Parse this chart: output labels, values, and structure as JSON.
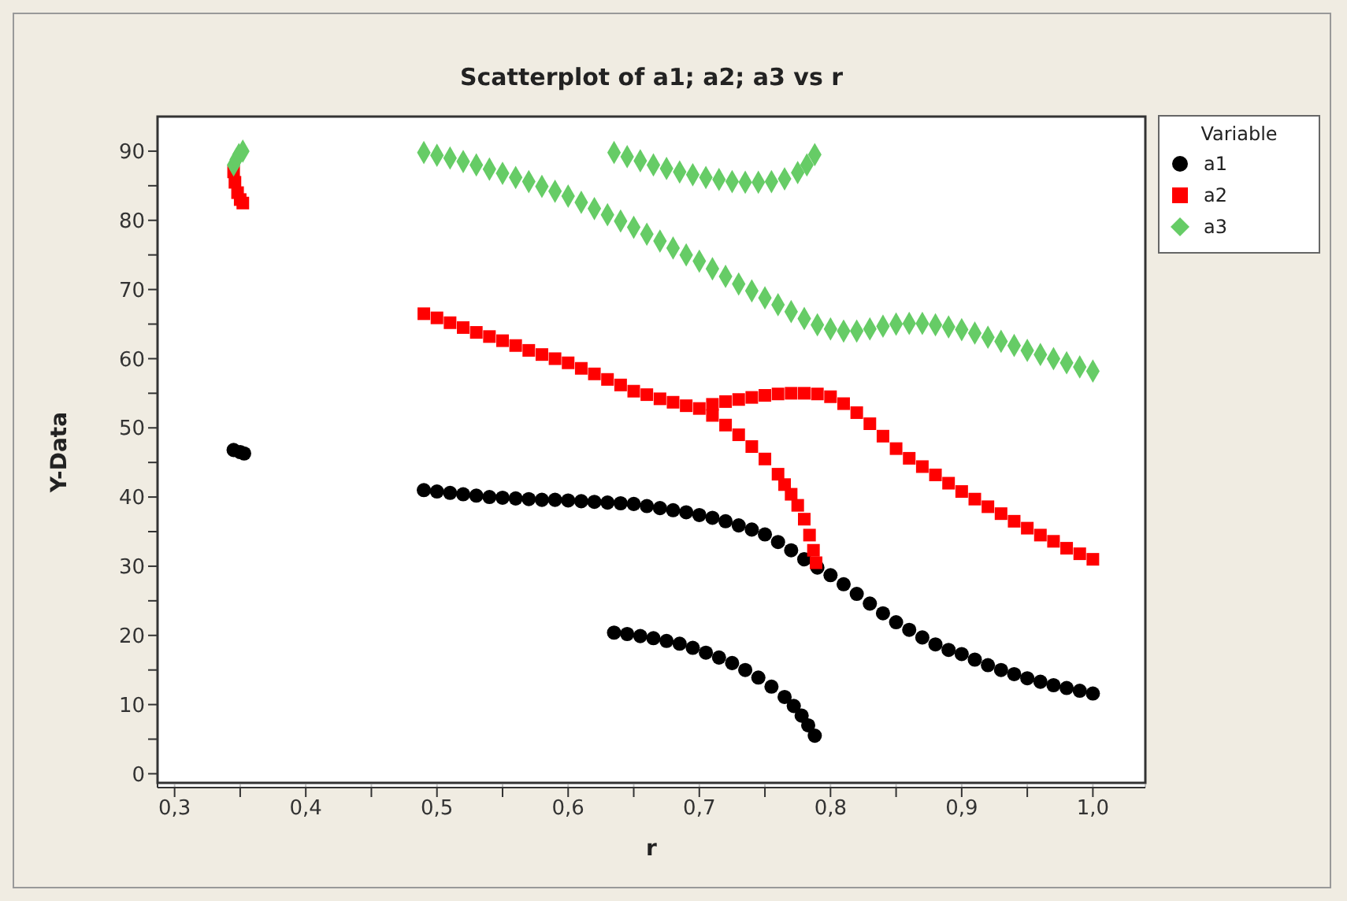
{
  "chart_data": {
    "type": "scatter",
    "title": "Scatterplot of a1; a2; a3 vs r",
    "xlabel": "r",
    "ylabel": "Y-Data",
    "legend_title": "Variable",
    "legend": "right",
    "grid": true,
    "xlim": [
      0.287,
      1.04
    ],
    "ylim": [
      -2,
      95
    ],
    "xticks": [
      {
        "value": 0.3,
        "label": "0,3"
      },
      {
        "value": 0.35,
        "label": null
      },
      {
        "value": 0.4,
        "label": "0,4"
      },
      {
        "value": 0.45,
        "label": null
      },
      {
        "value": 0.5,
        "label": "0,5"
      },
      {
        "value": 0.55,
        "label": null
      },
      {
        "value": 0.6,
        "label": "0,6"
      },
      {
        "value": 0.65,
        "label": null
      },
      {
        "value": 0.7,
        "label": "0,7"
      },
      {
        "value": 0.75,
        "label": null
      },
      {
        "value": 0.8,
        "label": "0,8"
      },
      {
        "value": 0.85,
        "label": null
      },
      {
        "value": 0.9,
        "label": "0,9"
      },
      {
        "value": 0.95,
        "label": null
      },
      {
        "value": 1.0,
        "label": "1,0"
      }
    ],
    "yticks": [
      0,
      {
        "value": 5,
        "label": null
      },
      10,
      {
        "value": 15,
        "label": null
      },
      20,
      {
        "value": 25,
        "label": null
      },
      30,
      {
        "value": 35,
        "label": null
      },
      40,
      {
        "value": 45,
        "label": null
      },
      50,
      {
        "value": 55,
        "label": null
      },
      60,
      {
        "value": 65,
        "label": null
      },
      70,
      {
        "value": 75,
        "label": null
      },
      80,
      {
        "value": 85,
        "label": null
      },
      90
    ],
    "series": [
      {
        "name": "a1",
        "color": "#000000",
        "marker": "circle",
        "x": [
          0.345,
          0.35,
          0.353,
          0.49,
          0.5,
          0.51,
          0.52,
          0.53,
          0.54,
          0.55,
          0.56,
          0.57,
          0.58,
          0.59,
          0.6,
          0.61,
          0.62,
          0.63,
          0.64,
          0.65,
          0.66,
          0.67,
          0.68,
          0.69,
          0.7,
          0.71,
          0.72,
          0.73,
          0.74,
          0.75,
          0.76,
          0.77,
          0.78,
          0.79,
          0.8,
          0.81,
          0.82,
          0.83,
          0.84,
          0.85,
          0.86,
          0.87,
          0.88,
          0.89,
          0.9,
          0.91,
          0.92,
          0.93,
          0.94,
          0.95,
          0.96,
          0.97,
          0.98,
          0.99,
          1.0,
          0.635,
          0.645,
          0.655,
          0.665,
          0.675,
          0.685,
          0.695,
          0.705,
          0.715,
          0.725,
          0.735,
          0.745,
          0.755,
          0.765,
          0.772,
          0.778,
          0.783,
          0.788
        ],
        "values": [
          46.8,
          46.5,
          46.3,
          41.0,
          40.8,
          40.6,
          40.4,
          40.2,
          40.0,
          39.9,
          39.8,
          39.7,
          39.6,
          39.6,
          39.5,
          39.4,
          39.3,
          39.2,
          39.1,
          39.0,
          38.7,
          38.4,
          38.1,
          37.8,
          37.4,
          37.0,
          36.5,
          35.9,
          35.3,
          34.6,
          33.5,
          32.3,
          31.0,
          29.8,
          28.7,
          27.4,
          26.0,
          24.6,
          23.2,
          21.9,
          20.8,
          19.7,
          18.7,
          17.9,
          17.3,
          16.5,
          15.7,
          15.0,
          14.4,
          13.8,
          13.3,
          12.8,
          12.4,
          12.0,
          11.6,
          20.4,
          20.2,
          19.9,
          19.6,
          19.2,
          18.8,
          18.2,
          17.5,
          16.8,
          16.0,
          15.0,
          13.9,
          12.6,
          11.1,
          9.8,
          8.4,
          7.0,
          5.5
        ]
      },
      {
        "name": "a2",
        "color": "#ff0000",
        "marker": "square",
        "x": [
          0.345,
          0.346,
          0.348,
          0.35,
          0.352,
          0.49,
          0.5,
          0.51,
          0.52,
          0.53,
          0.54,
          0.55,
          0.56,
          0.57,
          0.58,
          0.59,
          0.6,
          0.61,
          0.62,
          0.63,
          0.64,
          0.65,
          0.66,
          0.67,
          0.68,
          0.69,
          0.7,
          0.71,
          0.72,
          0.73,
          0.74,
          0.75,
          0.76,
          0.765,
          0.77,
          0.775,
          0.78,
          0.784,
          0.787,
          0.789,
          0.71,
          0.72,
          0.73,
          0.74,
          0.75,
          0.76,
          0.77,
          0.78,
          0.79,
          0.8,
          0.81,
          0.82,
          0.83,
          0.84,
          0.85,
          0.86,
          0.87,
          0.88,
          0.89,
          0.9,
          0.91,
          0.92,
          0.93,
          0.94,
          0.95,
          0.96,
          0.97,
          0.98,
          0.99,
          1.0
        ],
        "values": [
          87,
          85.5,
          84,
          83,
          82.5,
          66.5,
          65.9,
          65.2,
          64.5,
          63.8,
          63.2,
          62.6,
          61.9,
          61.2,
          60.6,
          60.0,
          59.4,
          58.6,
          57.8,
          57.0,
          56.2,
          55.3,
          54.8,
          54.2,
          53.7,
          53.2,
          52.8,
          51.8,
          50.4,
          49.0,
          47.3,
          45.5,
          43.3,
          41.8,
          40.4,
          38.8,
          36.8,
          34.5,
          32.3,
          30.5,
          53.4,
          53.8,
          54.1,
          54.4,
          54.7,
          54.9,
          55.0,
          55.0,
          54.9,
          54.5,
          53.5,
          52.2,
          50.6,
          48.8,
          47.0,
          45.6,
          44.4,
          43.2,
          42.0,
          40.8,
          39.7,
          38.6,
          37.6,
          36.5,
          35.5,
          34.5,
          33.6,
          32.6,
          31.8,
          31.0
        ]
      },
      {
        "name": "a3",
        "color": "#66cc66",
        "marker": "diamond",
        "x": [
          0.345,
          0.347,
          0.349,
          0.352,
          0.49,
          0.5,
          0.51,
          0.52,
          0.53,
          0.54,
          0.55,
          0.56,
          0.57,
          0.58,
          0.59,
          0.6,
          0.61,
          0.62,
          0.63,
          0.64,
          0.65,
          0.66,
          0.67,
          0.68,
          0.69,
          0.7,
          0.71,
          0.72,
          0.73,
          0.74,
          0.75,
          0.76,
          0.77,
          0.78,
          0.79,
          0.8,
          0.81,
          0.82,
          0.83,
          0.84,
          0.85,
          0.86,
          0.87,
          0.88,
          0.89,
          0.9,
          0.91,
          0.92,
          0.93,
          0.94,
          0.95,
          0.96,
          0.97,
          0.98,
          0.99,
          1.0,
          0.635,
          0.645,
          0.655,
          0.665,
          0.675,
          0.685,
          0.695,
          0.705,
          0.715,
          0.725,
          0.735,
          0.745,
          0.755,
          0.765,
          0.775,
          0.782,
          0.788
        ],
        "values": [
          88,
          88.8,
          89.5,
          90,
          89.8,
          89.4,
          89.0,
          88.5,
          88.0,
          87.4,
          86.8,
          86.2,
          85.6,
          84.9,
          84.2,
          83.5,
          82.6,
          81.7,
          80.8,
          79.9,
          79.0,
          78.0,
          77.0,
          76.0,
          75.0,
          74.1,
          73.0,
          71.9,
          70.8,
          69.8,
          68.8,
          67.8,
          66.8,
          65.8,
          64.9,
          64.3,
          64.0,
          64.0,
          64.3,
          64.7,
          65.0,
          65.1,
          65.1,
          64.9,
          64.6,
          64.2,
          63.7,
          63.1,
          62.5,
          61.9,
          61.2,
          60.6,
          60.0,
          59.4,
          58.8,
          58.2,
          89.8,
          89.2,
          88.6,
          88.0,
          87.5,
          87.0,
          86.6,
          86.2,
          85.9,
          85.6,
          85.5,
          85.5,
          85.6,
          86.0,
          86.9,
          88.0,
          89.5
        ]
      }
    ]
  }
}
